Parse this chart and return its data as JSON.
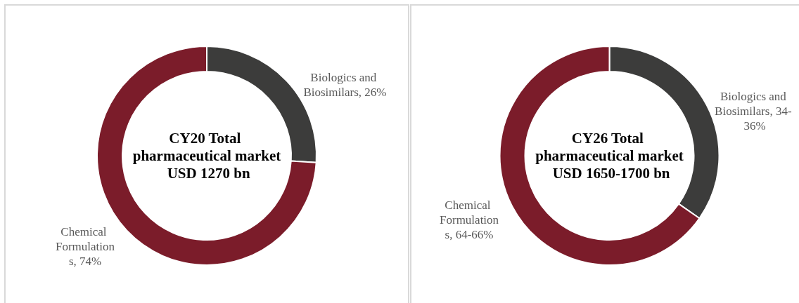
{
  "chart_data": [
    {
      "type": "donut",
      "title": "CY20 Total pharmaceutical market USD 1270 bn",
      "categories": [
        "Biologics and Biosimilars",
        "Chemical Formulations"
      ],
      "values": [
        26,
        74
      ],
      "colors": [
        "#3c3c3b",
        "#7b1c2a"
      ],
      "value_labels": [
        "26%",
        "74%"
      ]
    },
    {
      "type": "donut",
      "title": "CY26 Total pharmaceutical market USD 1650-1700 bn",
      "categories": [
        "Biologics and Biosimilars",
        "Chemical Formulations"
      ],
      "values": [
        34,
        64
      ],
      "colors": [
        "#3c3c3b",
        "#7b1c2a"
      ],
      "value_labels": [
        "34- 36%",
        "64-66%"
      ]
    }
  ]
}
